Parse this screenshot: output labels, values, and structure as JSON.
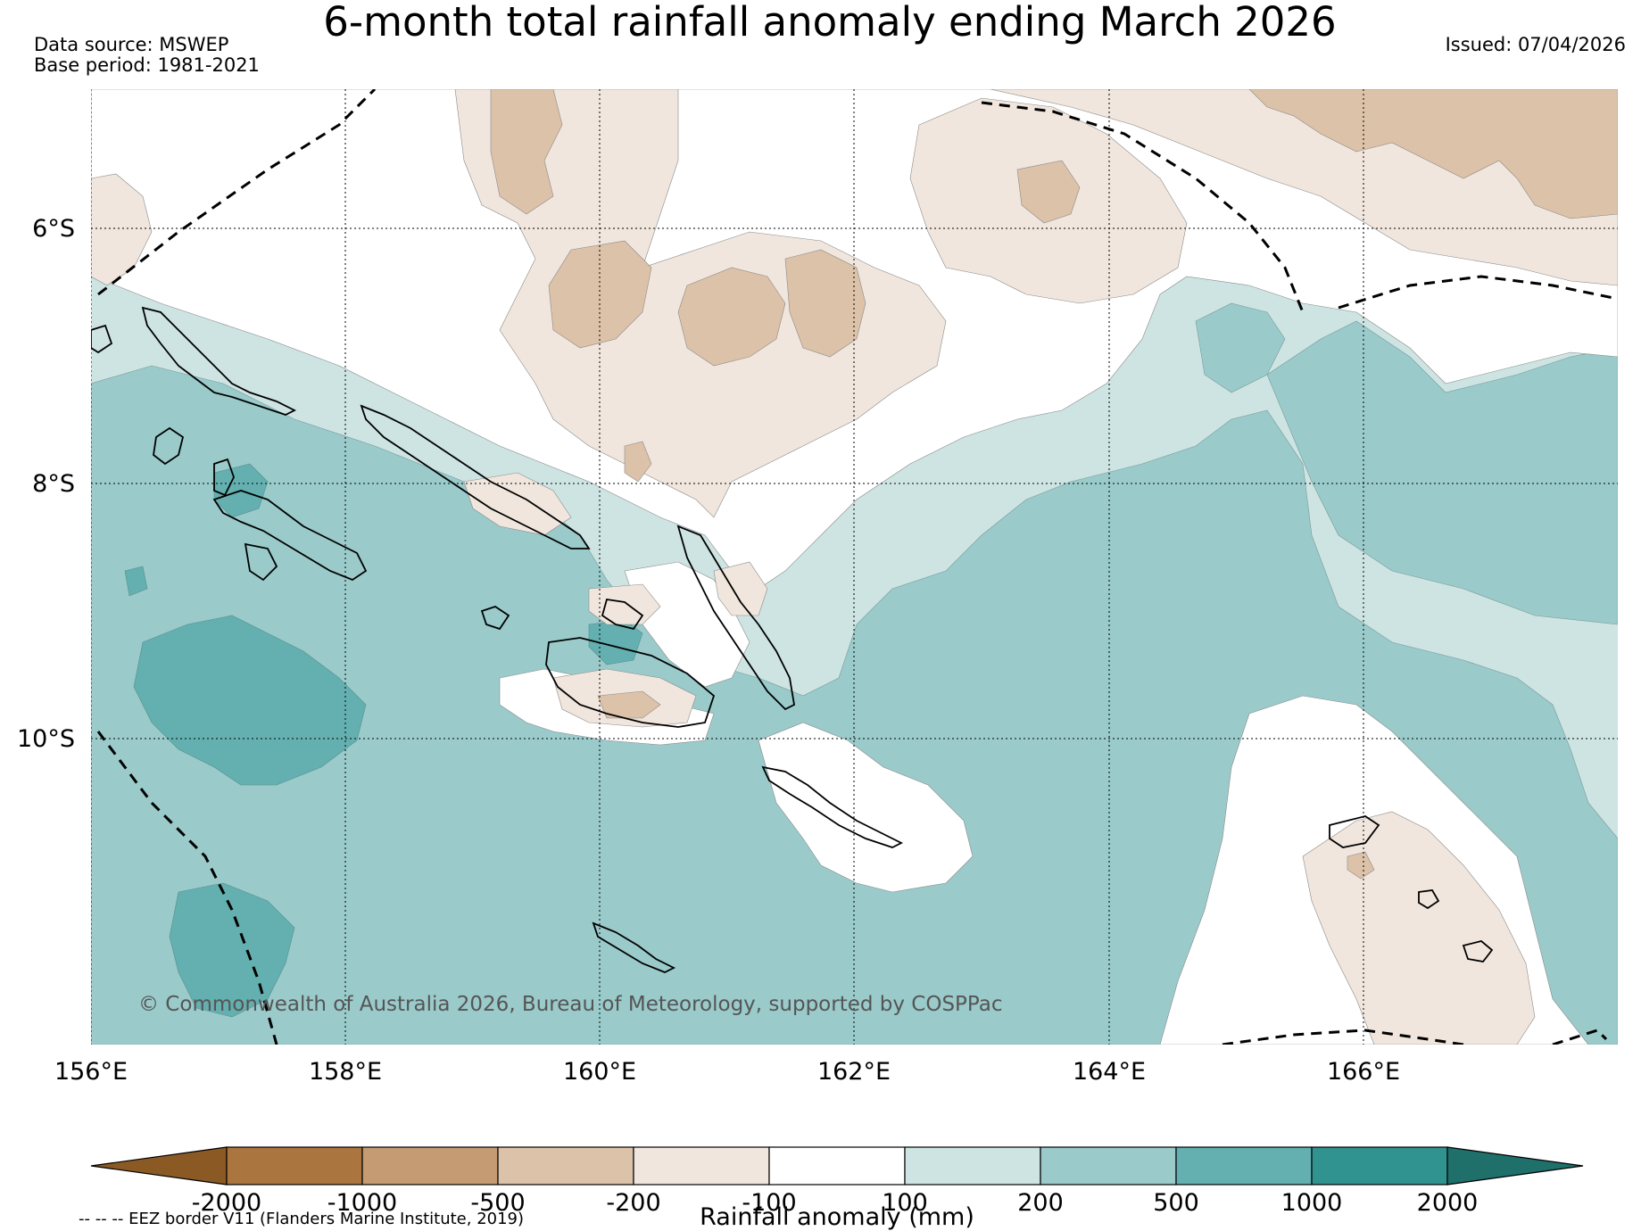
{
  "title": "6-month total rainfall anomaly ending March 2026",
  "meta": {
    "data_source": "Data source: MSWEP",
    "base_period": "Base period: 1981-2021",
    "issued": "Issued: 07/04/2026"
  },
  "map": {
    "lon_ticks": [
      "156°E",
      "158°E",
      "160°E",
      "162°E",
      "164°E",
      "166°E"
    ],
    "lat_ticks": [
      "6°S",
      "8°S",
      "10°S"
    ],
    "copyright": "© Commonwealth of Australia 2026, Bureau of Meteorology, supported by COSPPac"
  },
  "colorbar": {
    "label": "Rainfall anomaly (mm)",
    "ticks": [
      "-2000",
      "-1000",
      "-500",
      "-200",
      "-100",
      "100",
      "200",
      "500",
      "1000",
      "2000"
    ],
    "colors": [
      "#8b5a24",
      "#ab753f",
      "#c59b74",
      "#dcc2a8",
      "#f0e6dd",
      "#ffffff",
      "#cde4e3",
      "#9acaca",
      "#64afaf",
      "#31938f",
      "#1f6f6b"
    ]
  },
  "footnote": "-- -- -- EEZ border V11 (Flanders Marine Institute, 2019)"
}
